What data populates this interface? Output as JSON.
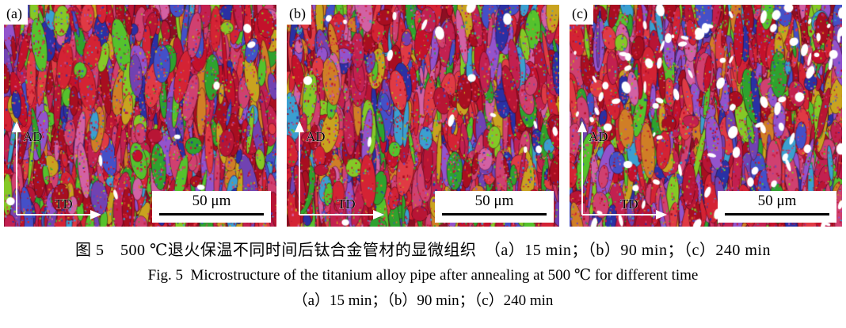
{
  "figure": {
    "panels": [
      {
        "label": "(a)",
        "scale_label": "50 μm",
        "axis_vertical": "AD",
        "axis_horizontal": "TD"
      },
      {
        "label": "(b)",
        "scale_label": "50 μm",
        "axis_vertical": "AD",
        "axis_horizontal": "TD"
      },
      {
        "label": "(c)",
        "scale_label": "50 μm",
        "axis_vertical": "AD",
        "axis_horizontal": "TD"
      }
    ],
    "caption_zh": "图 5　500 ℃退火保温不同时间后钛合金管材的显微组织　（a）15 min；（b）90 min；（c）240 min",
    "caption_en": "Fig. 5 Microstructure of the titanium alloy pipe after annealing at 500 ℃ for different time",
    "caption_sub": "（a）15 min；（b）90 min；（c）240 min"
  },
  "palette": {
    "dominant_grain_colors": [
      "#c4112b",
      "#d42334",
      "#a80e20",
      "#e03a44",
      "#c22050",
      "#d04070",
      "#b81535"
    ],
    "secondary_grain_colors": [
      "#2ea22e",
      "#55c22d",
      "#84c926",
      "#2a30a4",
      "#4450c8",
      "#7142b2",
      "#9353cc",
      "#c9a31f",
      "#d07e26",
      "#d261a4",
      "#3b9fd0"
    ],
    "boundary_color": "#2a0512",
    "recrystallized_patch_color": "#ffffff"
  }
}
